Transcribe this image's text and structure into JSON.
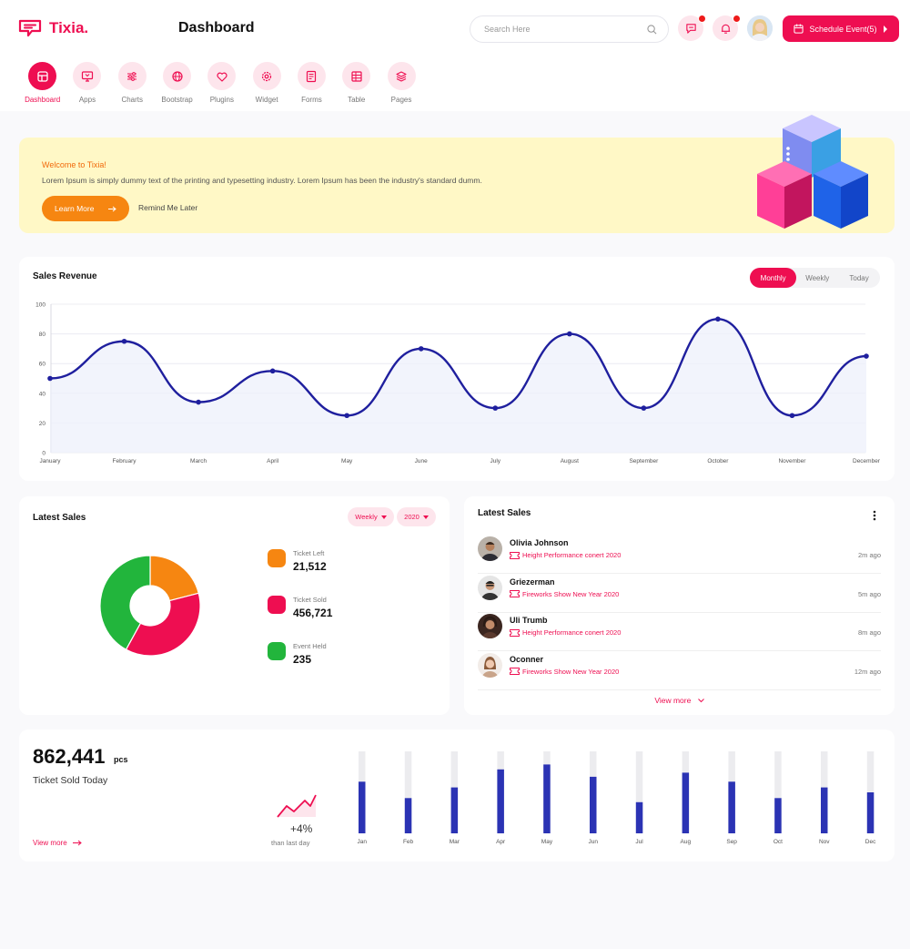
{
  "header": {
    "brand": "Tixia.",
    "page_title": "Dashboard",
    "search_placeholder": "Search Here",
    "schedule_label": "Schedule Event(5)"
  },
  "nav": [
    {
      "label": "Dashboard",
      "icon": "dashboard-icon",
      "active": true
    },
    {
      "label": "Apps",
      "icon": "monitor-icon"
    },
    {
      "label": "Charts",
      "icon": "sliders-icon"
    },
    {
      "label": "Bootstrap",
      "icon": "globe-icon"
    },
    {
      "label": "Plugins",
      "icon": "heart-icon"
    },
    {
      "label": "Widget",
      "icon": "settings-icon"
    },
    {
      "label": "Forms",
      "icon": "form-icon"
    },
    {
      "label": "Table",
      "icon": "table-icon"
    },
    {
      "label": "Pages",
      "icon": "layers-icon"
    }
  ],
  "banner": {
    "title": "Welcome to Tixia!",
    "text": "Lorem Ipsum is simply dummy text of the printing and typesetting industry. Lorem Ipsum has been the industry's standard dumm.",
    "learn_more": "Learn More",
    "remind": "Remind Me Later"
  },
  "revenue": {
    "title": "Sales Revenue",
    "tabs": [
      "Monthly",
      "Weekly",
      "Today"
    ],
    "active_tab": "Monthly"
  },
  "latest_sales_chart": {
    "title": "Latest Sales",
    "filter_period": "Weekly",
    "filter_year": "2020",
    "legend": [
      {
        "name": "Ticket Left",
        "value": "21,512",
        "color": "#f68611"
      },
      {
        "name": "Ticket Sold",
        "value": "456,721",
        "color": "#ee0e51"
      },
      {
        "name": "Event Held",
        "value": "235",
        "color": "#22b53c"
      }
    ]
  },
  "latest_sales_list": {
    "title": "Latest Sales",
    "view_more": "View more",
    "items": [
      {
        "name": "Olivia Johnson",
        "event": "Height Performance conert 2020",
        "time": "2m ago"
      },
      {
        "name": "Griezerman",
        "event": "Fireworks Show New Year 2020",
        "time": "5m ago"
      },
      {
        "name": "Uli Trumb",
        "event": "Height Performance conert 2020",
        "time": "8m ago"
      },
      {
        "name": "Oconner",
        "event": "Fireworks Show New Year 2020",
        "time": "12m ago"
      }
    ]
  },
  "ticket_today": {
    "value": "862,441",
    "unit": "pcs",
    "label": "Ticket Sold Today",
    "view_more": "View more",
    "growth": "+4%",
    "growth_label": "than last day"
  },
  "colors": {
    "accent": "#ee0e51",
    "orange": "#f68611",
    "green": "#22b53c",
    "line": "#1f1f9e"
  },
  "chart_data": [
    {
      "type": "area",
      "categories": [
        "January",
        "February",
        "March",
        "April",
        "May",
        "June",
        "July",
        "August",
        "September",
        "October",
        "November",
        "December"
      ],
      "values": [
        50,
        75,
        34,
        55,
        25,
        70,
        30,
        80,
        30,
        90,
        25,
        65
      ],
      "ylim": [
        0,
        100
      ],
      "yticks": [
        0,
        20,
        40,
        60,
        80,
        100
      ],
      "grid": true
    },
    {
      "type": "pie",
      "donut": true,
      "labels": [
        "Ticket Left",
        "Ticket Sold",
        "Event Held"
      ],
      "values": [
        21,
        37,
        42
      ]
    },
    {
      "type": "bar",
      "categories": [
        "Jan",
        "Feb",
        "Mar",
        "Apr",
        "May",
        "Jun",
        "Jul",
        "Aug",
        "Sep",
        "Oct",
        "Nov",
        "Dec"
      ],
      "values": [
        63,
        43,
        56,
        78,
        84,
        69,
        38,
        74,
        63,
        43,
        56,
        50
      ],
      "ylim": [
        0,
        100
      ]
    }
  ]
}
